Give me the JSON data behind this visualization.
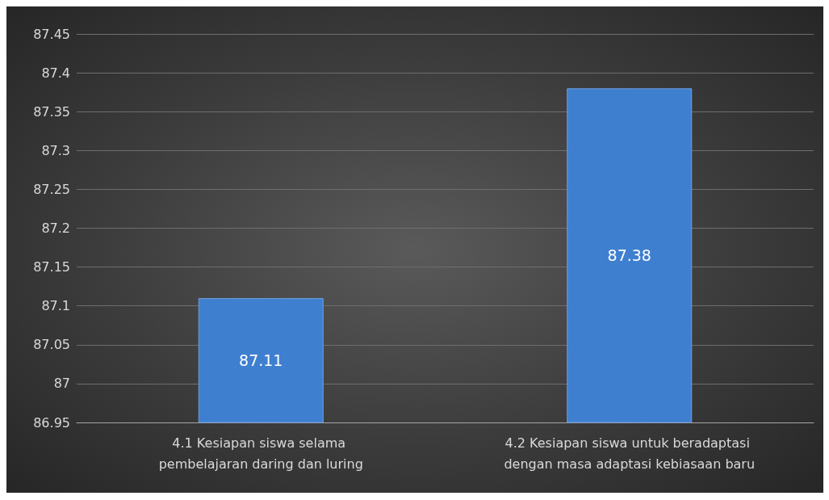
{
  "chart_data": {
    "type": "bar",
    "categories": [
      "4.1 Kesiapan siswa selama pembelajaran daring dan luring",
      "4.2 Kesiapan siswa untuk beradaptasi dengan masa adaptasi kebiasaan baru"
    ],
    "values": [
      87.11,
      87.38
    ],
    "color": "#3f7fd0",
    "ylim": [
      86.95,
      87.45
    ],
    "yticks": [
      86.95,
      87,
      87.05,
      87.1,
      87.15,
      87.2,
      87.25,
      87.3,
      87.35,
      87.4,
      87.45
    ],
    "grid": "y",
    "data_labels": true
  }
}
